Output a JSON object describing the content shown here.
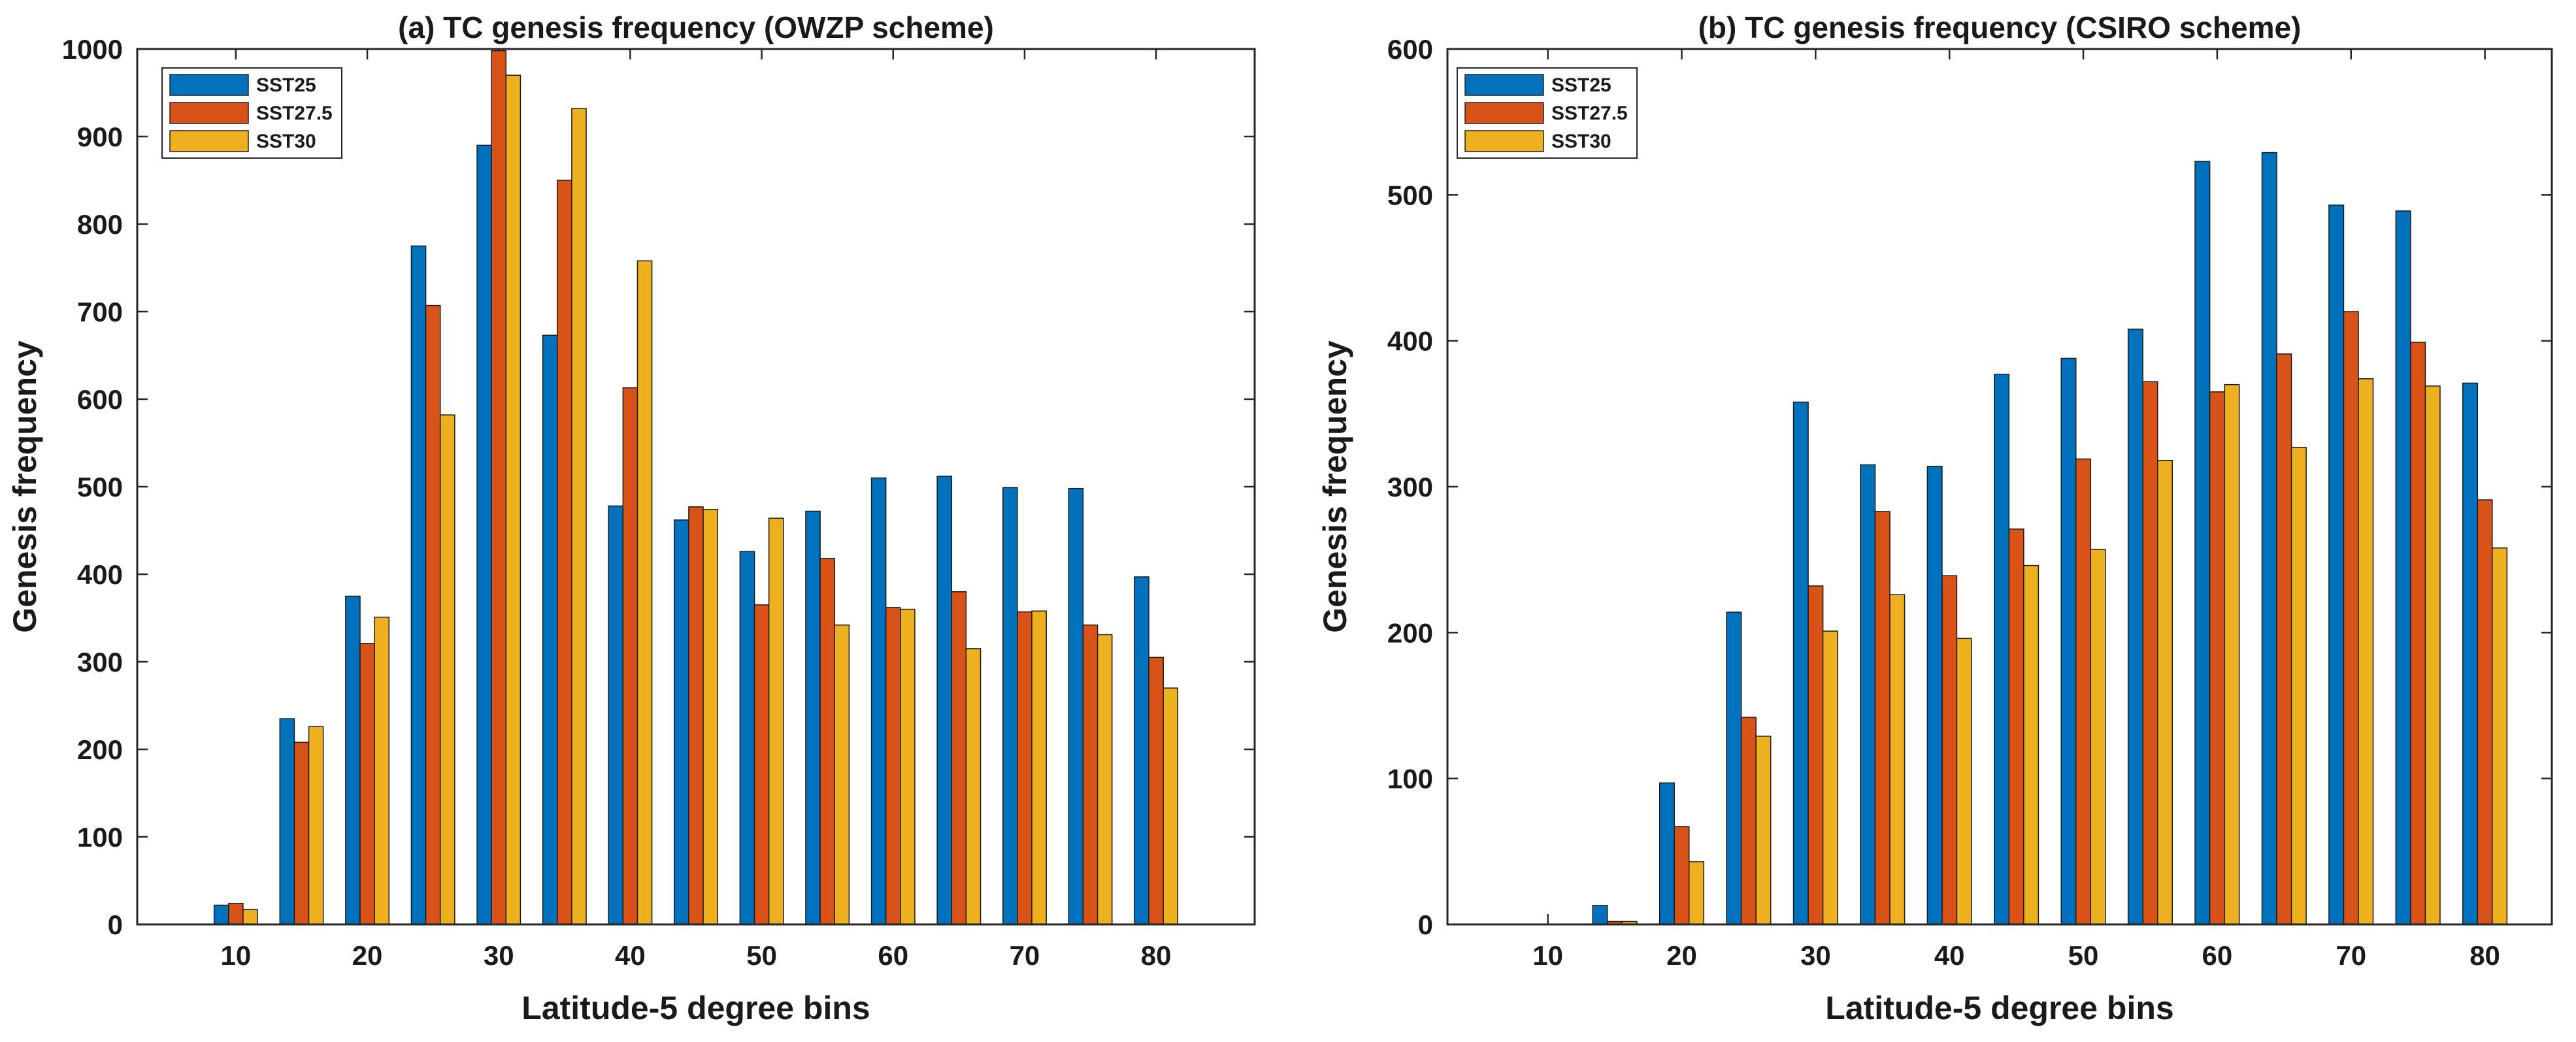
{
  "chart_data": [
    {
      "type": "bar",
      "title": "(a) TC genesis frequency (OWZP scheme)",
      "xlabel": "Latitude-5 degree bins",
      "ylabel": "Genesis frequency",
      "ylim": [
        0,
        1000
      ],
      "yticks": [
        0,
        100,
        200,
        300,
        400,
        500,
        600,
        700,
        800,
        900,
        1000
      ],
      "xticks": [
        10,
        20,
        30,
        40,
        50,
        60,
        70,
        80
      ],
      "xlim": [
        2.5,
        87.5
      ],
      "legend_position": "top-left",
      "categories": [
        10,
        15,
        20,
        25,
        30,
        35,
        40,
        45,
        50,
        55,
        60,
        65,
        70,
        75,
        80
      ],
      "series": [
        {
          "name": "SST25",
          "color": "#0072BD",
          "values": [
            22,
            235,
            375,
            775,
            890,
            673,
            478,
            462,
            426,
            472,
            510,
            512,
            499,
            498,
            397
          ]
        },
        {
          "name": "SST27.5",
          "color": "#D95319",
          "values": [
            24,
            208,
            321,
            707,
            998,
            850,
            613,
            477,
            365,
            418,
            362,
            380,
            357,
            342,
            305
          ]
        },
        {
          "name": "SST30",
          "color": "#EDB120",
          "values": [
            17,
            226,
            351,
            582,
            970,
            932,
            758,
            474,
            464,
            342,
            360,
            315,
            358,
            331,
            270
          ]
        }
      ]
    },
    {
      "type": "bar",
      "title": "(b) TC genesis frequency (CSIRO scheme)",
      "xlabel": "Latitude-5 degree bins",
      "ylabel": "Genesis frequency",
      "ylim": [
        0,
        600
      ],
      "yticks": [
        0,
        100,
        200,
        300,
        400,
        500,
        600
      ],
      "xticks": [
        10,
        20,
        30,
        40,
        50,
        60,
        70,
        80
      ],
      "xlim": [
        2.5,
        85
      ],
      "legend_position": "top-left",
      "categories": [
        10,
        15,
        20,
        25,
        30,
        35,
        40,
        45,
        50,
        55,
        60,
        65,
        70,
        75,
        80
      ],
      "series": [
        {
          "name": "SST25",
          "color": "#0072BD",
          "values": [
            0,
            13,
            97,
            214,
            358,
            315,
            314,
            377,
            388,
            408,
            523,
            529,
            493,
            489,
            371
          ]
        },
        {
          "name": "SST27.5",
          "color": "#D95319",
          "values": [
            0,
            2,
            67,
            142,
            232,
            283,
            239,
            271,
            319,
            372,
            365,
            391,
            420,
            399,
            291
          ]
        },
        {
          "name": "SST30",
          "color": "#EDB120",
          "values": [
            0,
            2,
            43,
            129,
            201,
            226,
            196,
            246,
            257,
            318,
            370,
            327,
            374,
            369,
            258
          ]
        }
      ]
    }
  ]
}
